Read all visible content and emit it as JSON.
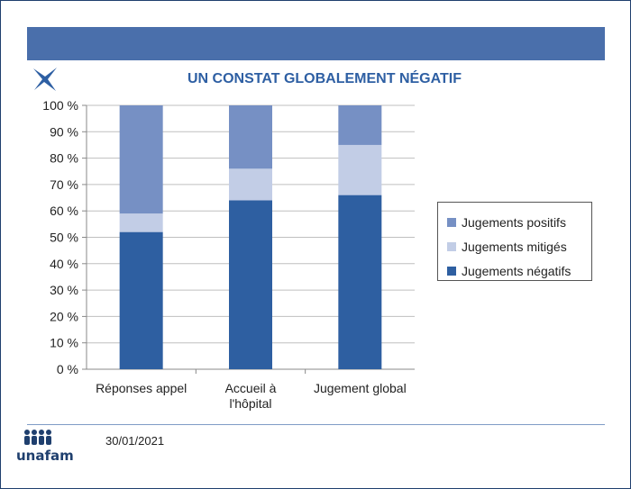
{
  "slide": {
    "title": "UN CONSTAT GLOBALEMENT NÉGATIF",
    "date": "30/01/2021",
    "logo_text": "unafam"
  },
  "colors": {
    "band": "#4a6fab",
    "negatifs": "#2e5fa1",
    "mitiges": "#c2cde6",
    "positifs": "#7690c4",
    "title": "#2e5fa3"
  },
  "chart_data": {
    "type": "bar",
    "stacked": true,
    "categories": [
      "Réponses appel",
      "Accueil à l'hôpital",
      "Jugement global"
    ],
    "category_lines": [
      [
        "Réponses appel"
      ],
      [
        "Accueil à",
        "l'hôpital"
      ],
      [
        "Jugement global"
      ]
    ],
    "series": [
      {
        "name": "Jugements négatifs",
        "values": [
          52,
          64,
          66
        ],
        "color": "#2e5fa1"
      },
      {
        "name": "Jugements mitigés",
        "values": [
          7,
          12,
          19
        ],
        "color": "#c2cde6"
      },
      {
        "name": "Jugements positifs",
        "values": [
          41,
          24,
          15
        ],
        "color": "#7690c4"
      }
    ],
    "ylim": [
      0,
      100
    ],
    "yticks": [
      "0 %",
      "10 %",
      "20 %",
      "30 %",
      "40 %",
      "50 %",
      "60 %",
      "70 %",
      "80 %",
      "90 %",
      "100 %"
    ],
    "grid": true,
    "legend": {
      "position": "right",
      "entries": [
        {
          "label": "Jugements positifs",
          "color": "#7690c4"
        },
        {
          "label": "Jugements mitigés",
          "color": "#c2cde6"
        },
        {
          "label": "Jugements négatifs",
          "color": "#2e5fa1"
        }
      ]
    }
  }
}
